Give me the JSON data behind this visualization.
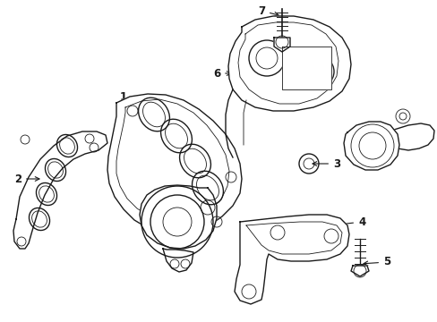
{
  "background_color": "#ffffff",
  "line_color": "#1a1a1a",
  "lw": 1.0,
  "tlw": 0.6,
  "font_size": 8.5,
  "figw": 4.89,
  "figh": 3.6,
  "dpi": 100
}
